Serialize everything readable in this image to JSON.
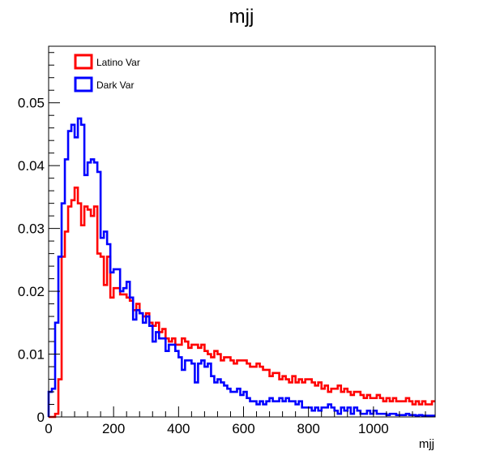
{
  "chart_data": {
    "type": "line",
    "title": "mjj",
    "xlabel": "mjj",
    "ylabel": "",
    "xlim": [
      0,
      1190
    ],
    "ylim": [
      0,
      0.059
    ],
    "bin_width": 10,
    "x_ticks": [
      0,
      200,
      400,
      600,
      800,
      1000
    ],
    "x_tick_labels": [
      "0",
      "200",
      "400",
      "600",
      "800",
      "1000"
    ],
    "y_ticks": [
      0,
      0.01,
      0.02,
      0.03,
      0.04,
      0.05
    ],
    "y_tick_labels": [
      "0",
      "0.01",
      "0.02",
      "0.03",
      "0.04",
      "0.05"
    ],
    "legend_position": "top-left",
    "grid": false,
    "series": [
      {
        "name": "Latino Var",
        "color": "#ff0000",
        "values": [
          0,
          0,
          0.0005,
          0.006,
          0.0255,
          0.0295,
          0.0335,
          0.0345,
          0.0365,
          0.034,
          0.0305,
          0.0335,
          0.033,
          0.032,
          0.0335,
          0.026,
          0.0255,
          0.021,
          0.0255,
          0.019,
          0.0205,
          0.0205,
          0.0195,
          0.0195,
          0.019,
          0.0185,
          0.017,
          0.018,
          0.0165,
          0.016,
          0.0165,
          0.015,
          0.0145,
          0.015,
          0.0135,
          0.014,
          0.0125,
          0.012,
          0.0125,
          0.0115,
          0.0115,
          0.0125,
          0.012,
          0.011,
          0.0115,
          0.0115,
          0.011,
          0.0115,
          0.0105,
          0.01,
          0.0095,
          0.0105,
          0.01,
          0.009,
          0.0095,
          0.0095,
          0.009,
          0.0085,
          0.009,
          0.009,
          0.009,
          0.0085,
          0.008,
          0.008,
          0.0085,
          0.008,
          0.0075,
          0.0075,
          0.0065,
          0.007,
          0.007,
          0.006,
          0.0065,
          0.006,
          0.0055,
          0.0065,
          0.0055,
          0.006,
          0.0055,
          0.006,
          0.006,
          0.0055,
          0.005,
          0.0055,
          0.0045,
          0.005,
          0.004,
          0.0045,
          0.0045,
          0.005,
          0.004,
          0.0045,
          0.004,
          0.0035,
          0.004,
          0.004,
          0.0035,
          0.003,
          0.0035,
          0.003,
          0.003,
          0.0035,
          0.003,
          0.0025,
          0.003,
          0.0025,
          0.003,
          0.0025,
          0.0025,
          0.0025,
          0.003,
          0.0025,
          0.002,
          0.0025,
          0.002,
          0.0025,
          0.002,
          0.002,
          0.0025
        ]
      },
      {
        "name": "Dark Var",
        "color": "#0000ff",
        "values": [
          0.004,
          0.0045,
          0.015,
          0.0255,
          0.034,
          0.041,
          0.0455,
          0.0465,
          0.0445,
          0.0475,
          0.0465,
          0.0385,
          0.0405,
          0.041,
          0.0405,
          0.039,
          0.0285,
          0.0295,
          0.0275,
          0.023,
          0.0235,
          0.0235,
          0.02,
          0.0205,
          0.0215,
          0.019,
          0.0155,
          0.017,
          0.0165,
          0.015,
          0.016,
          0.0145,
          0.012,
          0.0135,
          0.0125,
          0.0125,
          0.0105,
          0.0115,
          0.0115,
          0.0105,
          0.0095,
          0.0075,
          0.009,
          0.009,
          0.0085,
          0.0055,
          0.0085,
          0.009,
          0.008,
          0.0085,
          0.0065,
          0.0055,
          0.006,
          0.0055,
          0.005,
          0.0045,
          0.004,
          0.004,
          0.0045,
          0.0035,
          0.004,
          0.003,
          0.0025,
          0.0025,
          0.002,
          0.0025,
          0.002,
          0.0025,
          0.003,
          0.0025,
          0.0025,
          0.003,
          0.0025,
          0.003,
          0.0025,
          0.0025,
          0.002,
          0.0025,
          0.0015,
          0.0015,
          0.0015,
          0.001,
          0.0015,
          0.001,
          0.0015,
          0.0015,
          0.002,
          0.0015,
          0.001,
          0.0005,
          0.0015,
          0.001,
          0.0015,
          0.0005,
          0.0015,
          0.001,
          0.0005,
          0.0005,
          0.001,
          0.0005,
          0.001,
          0.0005,
          0.0005,
          0.0005,
          0.0003,
          0.0005,
          0.0005,
          0.0003,
          0.0003,
          0.0003,
          0.0005,
          0.0003,
          0.0003,
          0.0002,
          0.0003,
          0.0002,
          0.0002,
          0.0002,
          0.0002
        ]
      }
    ]
  }
}
